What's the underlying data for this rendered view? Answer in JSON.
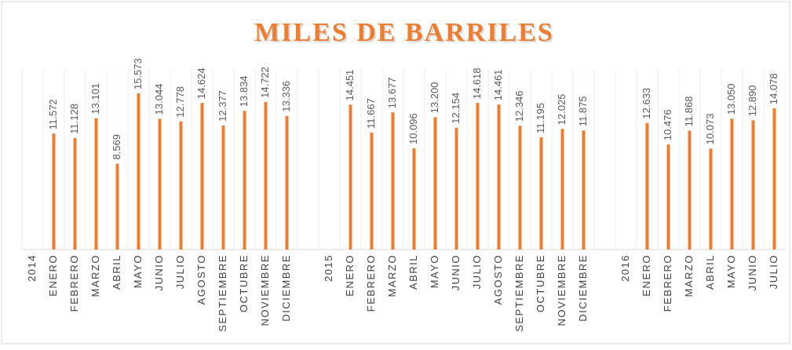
{
  "chart_data": {
    "type": "bar",
    "title": "MILES DE BARRILES",
    "categories": [
      "2014",
      "ENERO",
      "FEBRERO",
      "MARZO",
      "ABRIL",
      "MAYO",
      "JUNIO",
      "JULIO",
      "AGOSTO",
      "SEPTIEMBRE",
      "OCTUBRE",
      "NOVIEMBRE",
      "DICIEMBRE",
      null,
      "2015",
      "ENERO",
      "FEBRERO",
      "MARZO",
      "ABRIL",
      "MAYO",
      "JUNIO",
      "JULIO",
      "AGOSTO",
      "SEPTIEMBRE",
      "OCTUBRE",
      "NOVIEMBRE",
      "DICIEMBRE",
      null,
      "2016",
      "ENERO",
      "FEBRERO",
      "MARZO",
      "ABRIL",
      "MAYO",
      "JUNIO",
      "JULIO"
    ],
    "values": [
      null,
      11.572,
      11.128,
      13.101,
      8.569,
      15.573,
      13.044,
      12.778,
      14.624,
      12.377,
      13.834,
      14.722,
      13.336,
      null,
      null,
      14.451,
      11.667,
      13.677,
      10.096,
      13.2,
      12.154,
      14.618,
      14.461,
      12.346,
      11.195,
      12.025,
      11.875,
      null,
      null,
      12.633,
      10.476,
      11.868,
      10.073,
      13.05,
      12.89,
      14.078
    ],
    "value_labels": [
      null,
      "11.572",
      "11.128",
      "13.101",
      "8.569",
      "15.573",
      "13.044",
      "12.778",
      "14.624",
      "12.377",
      "13.834",
      "14.722",
      "13.336",
      null,
      null,
      "14.451",
      "11.667",
      "13.677",
      "10.096",
      "13.200",
      "12.154",
      "14.618",
      "14.461",
      "12.346",
      "11.195",
      "12.025",
      "11.875",
      null,
      null,
      "12.633",
      "10.476",
      "11.868",
      "10.073",
      "13.050",
      "12.890",
      "14.078"
    ],
    "color": "#ed7d31",
    "ylim": [
      0,
      18
    ]
  }
}
